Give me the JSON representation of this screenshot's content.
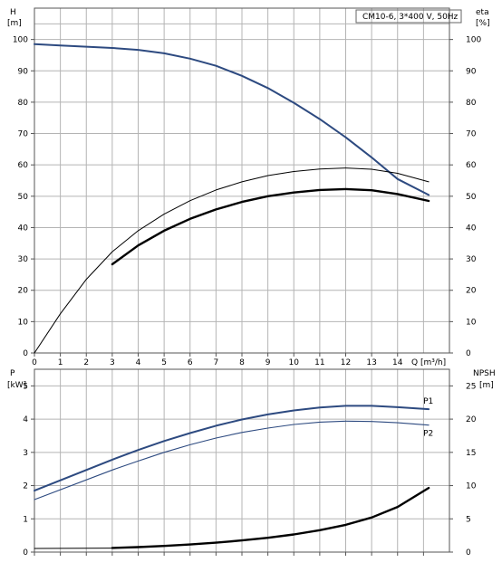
{
  "chart_data": [
    {
      "type": "line",
      "title": "CM10-6, 3*400 V, 50Hz",
      "y_axis_left": {
        "label_line1": "H",
        "label_line2": "[m]",
        "ticks": [
          "0",
          "10",
          "20",
          "30",
          "40",
          "50",
          "60",
          "70",
          "80",
          "90",
          "100"
        ],
        "ylim": [
          0,
          110
        ]
      },
      "y_axis_right": {
        "label_line1": "eta",
        "label_line2": "[%]",
        "ticks": [
          "0",
          "10",
          "20",
          "30",
          "40",
          "50",
          "60",
          "70",
          "80",
          "90",
          "100"
        ],
        "ylim": [
          0,
          110
        ]
      },
      "x_axis": {
        "label": "Q [m³/h]",
        "ticks": [
          "0",
          "1",
          "2",
          "3",
          "4",
          "5",
          "6",
          "7",
          "8",
          "9",
          "10",
          "11",
          "12",
          "13",
          "14"
        ],
        "xlim": [
          0,
          16
        ]
      },
      "grid": true,
      "series": [
        {
          "role": "head",
          "color": "#2d4a80",
          "points": [
            [
              0,
              98.5
            ],
            [
              1,
              98.1
            ],
            [
              2,
              97.7
            ],
            [
              3,
              97.3
            ],
            [
              4,
              96.7
            ],
            [
              5,
              95.6
            ],
            [
              6,
              93.9
            ],
            [
              7,
              91.6
            ],
            [
              8,
              88.4
            ],
            [
              9,
              84.5
            ],
            [
              10,
              79.8
            ],
            [
              11,
              74.6
            ],
            [
              12,
              68.8
            ],
            [
              13,
              62.4
            ],
            [
              14,
              55.5
            ],
            [
              15.2,
              50.4
            ]
          ]
        },
        {
          "role": "eta-thin",
          "color": "#000000",
          "points": [
            [
              0,
              0
            ],
            [
              1,
              12.5
            ],
            [
              2,
              23.5
            ],
            [
              3,
              32.3
            ],
            [
              4,
              39.0
            ],
            [
              5,
              44.3
            ],
            [
              6,
              48.6
            ],
            [
              7,
              52.0
            ],
            [
              8,
              54.6
            ],
            [
              9,
              56.6
            ],
            [
              10,
              57.9
            ],
            [
              11,
              58.7
            ],
            [
              12,
              59.0
            ],
            [
              13,
              58.6
            ],
            [
              14,
              57.3
            ],
            [
              15.2,
              54.6
            ]
          ]
        },
        {
          "role": "eta-bold",
          "color": "#000000",
          "points": [
            [
              3,
              28.3
            ],
            [
              4,
              34.3
            ],
            [
              5,
              39.0
            ],
            [
              6,
              42.8
            ],
            [
              7,
              45.8
            ],
            [
              8,
              48.2
            ],
            [
              9,
              50.0
            ],
            [
              10,
              51.2
            ],
            [
              11,
              52.0
            ],
            [
              12,
              52.3
            ],
            [
              13,
              51.9
            ],
            [
              14,
              50.7
            ],
            [
              15.2,
              48.5
            ]
          ]
        }
      ]
    },
    {
      "type": "line",
      "y_axis_left": {
        "label_line1": "P",
        "label_line2": "[kW]",
        "ticks": [
          "0",
          "1",
          "2",
          "3",
          "4",
          "5"
        ],
        "ylim": [
          0,
          5.5
        ]
      },
      "y_axis_right": {
        "label_line1": "NPSH",
        "label_line2": "[m]",
        "ticks": [
          "0",
          "5",
          "10",
          "15",
          "20",
          "25"
        ],
        "ylim": [
          0,
          27.5
        ]
      },
      "x_axis": {
        "xlim": [
          0,
          16
        ]
      },
      "grid": true,
      "series": [
        {
          "name": "P1",
          "axis": "left",
          "color": "#2d4a80",
          "points": [
            [
              0,
              1.85
            ],
            [
              3,
              2.78
            ],
            [
              4,
              3.07
            ],
            [
              5,
              3.34
            ],
            [
              6,
              3.58
            ],
            [
              7,
              3.8
            ],
            [
              8,
              3.99
            ],
            [
              9,
              4.14
            ],
            [
              10,
              4.26
            ],
            [
              11,
              4.35
            ],
            [
              12,
              4.4
            ],
            [
              13,
              4.4
            ],
            [
              14,
              4.36
            ],
            [
              15.2,
              4.3
            ]
          ]
        },
        {
          "name": "P2",
          "axis": "left",
          "color": "#2d4a80",
          "points": [
            [
              0,
              1.58
            ],
            [
              3,
              2.47
            ],
            [
              4,
              2.74
            ],
            [
              5,
              3.0
            ],
            [
              6,
              3.23
            ],
            [
              7,
              3.43
            ],
            [
              8,
              3.6
            ],
            [
              9,
              3.73
            ],
            [
              10,
              3.84
            ],
            [
              11,
              3.91
            ],
            [
              12,
              3.94
            ],
            [
              13,
              3.93
            ],
            [
              14,
              3.89
            ],
            [
              15.2,
              3.82
            ]
          ]
        },
        {
          "role": "npsh-thin",
          "axis": "right",
          "color": "#000000",
          "points": [
            [
              0,
              0.55
            ],
            [
              3,
              0.6
            ]
          ]
        },
        {
          "role": "npsh-bold",
          "axis": "right",
          "color": "#000000",
          "points": [
            [
              3,
              0.62
            ],
            [
              4,
              0.75
            ],
            [
              5,
              0.92
            ],
            [
              6,
              1.15
            ],
            [
              7,
              1.42
            ],
            [
              8,
              1.75
            ],
            [
              9,
              2.15
            ],
            [
              10,
              2.65
            ],
            [
              11,
              3.3
            ],
            [
              12,
              4.1
            ],
            [
              13,
              5.2
            ],
            [
              14,
              6.8
            ],
            [
              15.2,
              9.65
            ]
          ]
        }
      ]
    }
  ]
}
